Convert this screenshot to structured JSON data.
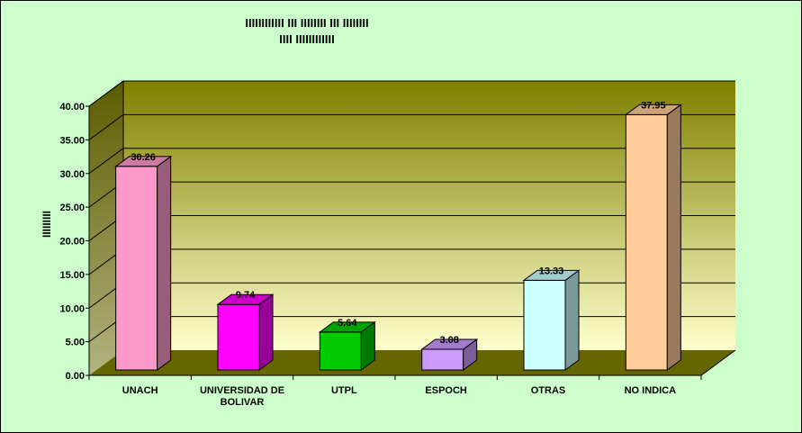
{
  "chart_data": {
    "type": "bar",
    "title_lines": [
      "IIIIIIIIIIII III IIIIIIII III IIIIIIII",
      "IIII IIIIIIIIIIII"
    ],
    "ylabel": "IIIIIIIII",
    "xlabel": "",
    "categories": [
      "UNACH",
      "UNIVERSIDAD DE BOLIVAR",
      "UTPL",
      "ESPOCH",
      "OTRAS",
      "NO INDICA"
    ],
    "category_lines": [
      [
        "UNACH"
      ],
      [
        "UNIVERSIDAD DE",
        "BOLIVAR"
      ],
      [
        "UTPL"
      ],
      [
        "ESPOCH"
      ],
      [
        "OTRAS"
      ],
      [
        "NO INDICA"
      ]
    ],
    "values": [
      30.26,
      9.74,
      5.64,
      3.08,
      13.33,
      37.95
    ],
    "value_labels": [
      "30.26",
      "9.74",
      "5.64",
      "3.08",
      "13.33",
      "37.95"
    ],
    "ylim": [
      0,
      40
    ],
    "yticks": [
      "0.00",
      "5.00",
      "10.00",
      "15.00",
      "20.00",
      "25.00",
      "30.00",
      "35.00",
      "40.00"
    ],
    "grid": true,
    "legend": "none",
    "colors": {
      "background": "#ccffcc",
      "wall_top": "#808000",
      "wall_bottom": "#ffffcc",
      "side_wall": "#666600",
      "floor": "#666600",
      "bars": [
        "#ff99cc",
        "#ff00ff",
        "#00cc00",
        "#cc99ff",
        "#ccffff",
        "#ffcc99"
      ]
    }
  }
}
